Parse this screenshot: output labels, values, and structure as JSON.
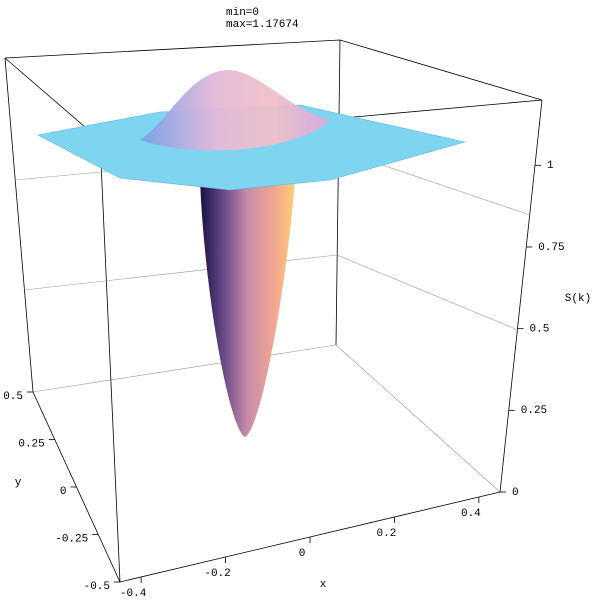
{
  "chart_data": {
    "type": "surface3d",
    "title_lines": [
      "min=0",
      "max=1.17674"
    ],
    "x_label": "x",
    "y_label": "y",
    "z_label": "S(k)",
    "xlim": [
      -0.45,
      0.45
    ],
    "xticks": [
      -0.4,
      -0.2,
      0,
      0.2,
      0.4
    ],
    "ylim": [
      -0.5,
      0.5
    ],
    "yticks": [
      -0.5,
      -0.25,
      0,
      0.25,
      0.5
    ],
    "zlim": [
      0,
      1.2
    ],
    "zticks": [
      0,
      0.25,
      0.5,
      0.75,
      1
    ]
  }
}
